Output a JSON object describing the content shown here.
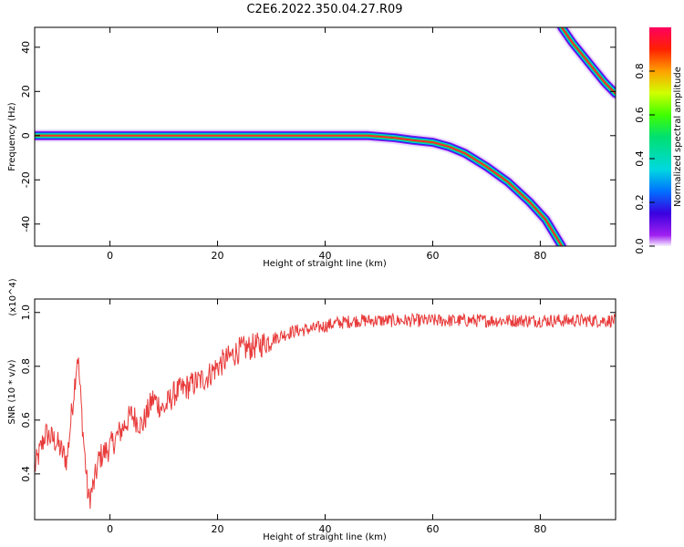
{
  "title": "C2E6.2022.350.04.27.R09",
  "chart_data": [
    {
      "type": "heatmap",
      "xlabel": "Height of straight line (km)",
      "ylabel": "Frequency (Hz)",
      "xlim": [
        -14,
        94
      ],
      "ylim": [
        -50,
        49
      ],
      "x_ticks": [
        0,
        20,
        40,
        60,
        80
      ],
      "y_ticks": [
        -40,
        -20,
        0,
        20,
        40
      ],
      "colorbar": {
        "label": "Normalized spectral amplitude",
        "range": [
          0.0,
          1.0
        ],
        "ticks": [
          0.0,
          0.2,
          0.4,
          0.6,
          0.8
        ]
      },
      "ridges": [
        {
          "x": [
            -14,
            -5,
            0,
            10,
            20,
            30,
            40,
            48,
            53,
            56,
            60,
            63,
            66,
            70,
            74,
            78,
            81,
            84
          ],
          "y": [
            0,
            0,
            0,
            0,
            0,
            0,
            0,
            0,
            -1,
            -2,
            -3,
            -5,
            -8,
            -14,
            -21,
            -30,
            -38,
            -50
          ]
        },
        {
          "x": [
            84,
            86,
            88,
            90,
            92,
            94
          ],
          "y": [
            49,
            42,
            36,
            30,
            24,
            19
          ]
        }
      ]
    },
    {
      "type": "line",
      "xlabel": "Height of straight line (km)",
      "ylabel": "SNR (10 * v/v)",
      "y_scale_note": "(x10^4)",
      "xlim": [
        -14,
        94
      ],
      "ylim": [
        0.23,
        1.05
      ],
      "x_ticks": [
        0,
        20,
        40,
        60,
        80
      ],
      "y_ticks": [
        0.4,
        0.6,
        0.8,
        1.0
      ],
      "series": [
        {
          "color": "#e83a3a",
          "x": [
            -14,
            -12,
            -10,
            -8,
            -7,
            -6,
            -5,
            -4,
            -3,
            -2,
            0,
            2,
            4,
            6,
            8,
            10,
            12,
            14,
            16,
            18,
            20,
            22,
            24,
            26,
            28,
            30,
            34,
            38,
            42,
            46,
            50,
            60,
            70,
            80,
            90,
            94
          ],
          "y": [
            0.42,
            0.55,
            0.52,
            0.45,
            0.65,
            0.85,
            0.55,
            0.3,
            0.36,
            0.46,
            0.5,
            0.56,
            0.62,
            0.58,
            0.68,
            0.64,
            0.7,
            0.72,
            0.74,
            0.76,
            0.8,
            0.83,
            0.86,
            0.87,
            0.88,
            0.9,
            0.93,
            0.94,
            0.96,
            0.97,
            0.97,
            0.97,
            0.97,
            0.97,
            0.97,
            0.97
          ]
        }
      ]
    }
  ]
}
